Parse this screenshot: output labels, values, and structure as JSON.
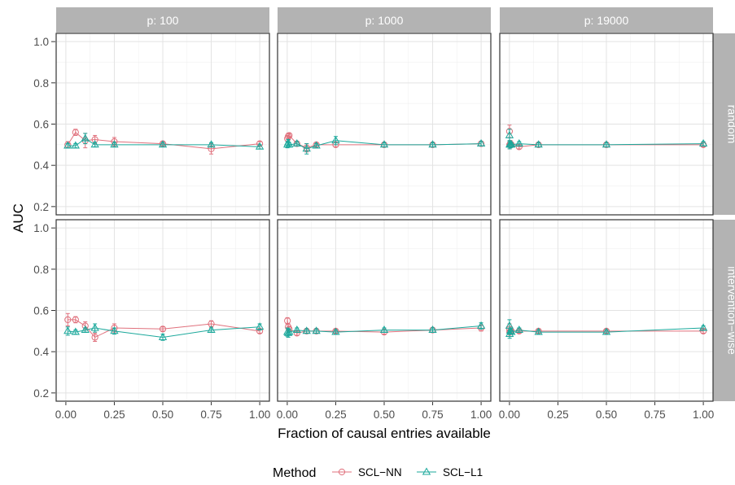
{
  "chart_data": {
    "type": "line",
    "xlabel": "Fraction of causal entries available",
    "ylabel": "AUC",
    "xlim": [
      -0.05,
      1.05
    ],
    "ylim": [
      0.16,
      1.04
    ],
    "x_ticks": [
      0,
      0.25,
      0.5,
      0.75,
      1
    ],
    "x_tick_labels": [
      "0.00",
      "0.25",
      "0.50",
      "0.75",
      "1.00"
    ],
    "y_ticks": [
      0.2,
      0.4,
      0.6,
      0.8,
      1.0
    ],
    "y_tick_labels": [
      "0.2",
      "0.4",
      "0.6",
      "0.8",
      "1.0"
    ],
    "grid": true,
    "columns": [
      "p: 100",
      "p: 1000",
      "p: 19000"
    ],
    "rows": [
      "random",
      "intervention−wise"
    ],
    "legend": {
      "title": "Method",
      "position": "bottom",
      "items": [
        {
          "name": "SCL−NN",
          "color": "#E0707C",
          "marker": "circle"
        },
        {
          "name": "SCL−L1",
          "color": "#1BA89B",
          "marker": "triangle"
        }
      ]
    },
    "panels": [
      {
        "column": "p: 100",
        "row": "random",
        "series": [
          {
            "name": "SCL−NN",
            "points": [
              {
                "x": 0.01,
                "y": 0.5,
                "err": 0.015
              },
              {
                "x": 0.05,
                "y": 0.56,
                "err": 0.015
              },
              {
                "x": 0.1,
                "y": 0.52,
                "err": 0.035
              },
              {
                "x": 0.15,
                "y": 0.525,
                "err": 0.02
              },
              {
                "x": 0.25,
                "y": 0.515,
                "err": 0.02
              },
              {
                "x": 0.5,
                "y": 0.505,
                "err": 0.01
              },
              {
                "x": 0.75,
                "y": 0.48,
                "err": 0.025
              },
              {
                "x": 1.0,
                "y": 0.505,
                "err": 0.01
              }
            ]
          },
          {
            "name": "SCL−L1",
            "points": [
              {
                "x": 0.01,
                "y": 0.495,
                "err": 0.01
              },
              {
                "x": 0.05,
                "y": 0.495,
                "err": 0.01
              },
              {
                "x": 0.1,
                "y": 0.53,
                "err": 0.025
              },
              {
                "x": 0.15,
                "y": 0.5,
                "err": 0.01
              },
              {
                "x": 0.25,
                "y": 0.5,
                "err": 0.01
              },
              {
                "x": 0.5,
                "y": 0.5,
                "err": 0.01
              },
              {
                "x": 0.75,
                "y": 0.5,
                "err": 0.01
              },
              {
                "x": 1.0,
                "y": 0.49,
                "err": 0.01
              }
            ]
          }
        ]
      },
      {
        "column": "p: 1000",
        "row": "random",
        "series": [
          {
            "name": "SCL−NN",
            "points": [
              {
                "x": 0.001,
                "y": 0.53,
                "err": 0.015
              },
              {
                "x": 0.005,
                "y": 0.54,
                "err": 0.015
              },
              {
                "x": 0.01,
                "y": 0.545,
                "err": 0.01
              },
              {
                "x": 0.05,
                "y": 0.505,
                "err": 0.01
              },
              {
                "x": 0.1,
                "y": 0.485,
                "err": 0.02
              },
              {
                "x": 0.15,
                "y": 0.5,
                "err": 0.01
              },
              {
                "x": 0.25,
                "y": 0.5,
                "err": 0.01
              },
              {
                "x": 0.5,
                "y": 0.5,
                "err": 0.01
              },
              {
                "x": 0.75,
                "y": 0.5,
                "err": 0.01
              },
              {
                "x": 1.0,
                "y": 0.505,
                "err": 0.01
              }
            ]
          },
          {
            "name": "SCL−L1",
            "points": [
              {
                "x": 0.001,
                "y": 0.5,
                "err": 0.015
              },
              {
                "x": 0.005,
                "y": 0.51,
                "err": 0.015
              },
              {
                "x": 0.01,
                "y": 0.5,
                "err": 0.01
              },
              {
                "x": 0.05,
                "y": 0.505,
                "err": 0.01
              },
              {
                "x": 0.1,
                "y": 0.48,
                "err": 0.025
              },
              {
                "x": 0.15,
                "y": 0.495,
                "err": 0.01
              },
              {
                "x": 0.25,
                "y": 0.52,
                "err": 0.02
              },
              {
                "x": 0.5,
                "y": 0.5,
                "err": 0.01
              },
              {
                "x": 0.75,
                "y": 0.5,
                "err": 0.01
              },
              {
                "x": 1.0,
                "y": 0.505,
                "err": 0.01
              }
            ]
          }
        ]
      },
      {
        "column": "p: 19000",
        "row": "random",
        "series": [
          {
            "name": "SCL−NN",
            "points": [
              {
                "x": 0.0001,
                "y": 0.565,
                "err": 0.03
              },
              {
                "x": 0.001,
                "y": 0.5,
                "err": 0.02
              },
              {
                "x": 0.005,
                "y": 0.505,
                "err": 0.015
              },
              {
                "x": 0.01,
                "y": 0.5,
                "err": 0.01
              },
              {
                "x": 0.05,
                "y": 0.49,
                "err": 0.01
              },
              {
                "x": 0.15,
                "y": 0.5,
                "err": 0.01
              },
              {
                "x": 0.5,
                "y": 0.5,
                "err": 0.01
              },
              {
                "x": 1.0,
                "y": 0.5,
                "err": 0.01
              }
            ]
          },
          {
            "name": "SCL−L1",
            "points": [
              {
                "x": 0.0001,
                "y": 0.545,
                "err": 0.03
              },
              {
                "x": 0.001,
                "y": 0.5,
                "err": 0.02
              },
              {
                "x": 0.005,
                "y": 0.5,
                "err": 0.015
              },
              {
                "x": 0.01,
                "y": 0.5,
                "err": 0.01
              },
              {
                "x": 0.05,
                "y": 0.505,
                "err": 0.01
              },
              {
                "x": 0.15,
                "y": 0.5,
                "err": 0.01
              },
              {
                "x": 0.5,
                "y": 0.5,
                "err": 0.01
              },
              {
                "x": 1.0,
                "y": 0.505,
                "err": 0.01
              }
            ]
          }
        ]
      },
      {
        "column": "p: 100",
        "row": "intervention−wise",
        "series": [
          {
            "name": "SCL−NN",
            "points": [
              {
                "x": 0.01,
                "y": 0.555,
                "err": 0.03
              },
              {
                "x": 0.05,
                "y": 0.555,
                "err": 0.015
              },
              {
                "x": 0.1,
                "y": 0.525,
                "err": 0.02
              },
              {
                "x": 0.15,
                "y": 0.47,
                "err": 0.02
              },
              {
                "x": 0.25,
                "y": 0.515,
                "err": 0.02
              },
              {
                "x": 0.5,
                "y": 0.51,
                "err": 0.01
              },
              {
                "x": 0.75,
                "y": 0.535,
                "err": 0.015
              },
              {
                "x": 1.0,
                "y": 0.5,
                "err": 0.01
              }
            ]
          },
          {
            "name": "SCL−L1",
            "points": [
              {
                "x": 0.01,
                "y": 0.5,
                "err": 0.02
              },
              {
                "x": 0.05,
                "y": 0.495,
                "err": 0.01
              },
              {
                "x": 0.1,
                "y": 0.505,
                "err": 0.01
              },
              {
                "x": 0.15,
                "y": 0.515,
                "err": 0.02
              },
              {
                "x": 0.25,
                "y": 0.5,
                "err": 0.015
              },
              {
                "x": 0.5,
                "y": 0.47,
                "err": 0.015
              },
              {
                "x": 0.75,
                "y": 0.505,
                "err": 0.01
              },
              {
                "x": 1.0,
                "y": 0.52,
                "err": 0.015
              }
            ]
          }
        ]
      },
      {
        "column": "p: 1000",
        "row": "intervention−wise",
        "series": [
          {
            "name": "SCL−NN",
            "points": [
              {
                "x": 0.001,
                "y": 0.55,
                "err": 0.015
              },
              {
                "x": 0.005,
                "y": 0.52,
                "err": 0.015
              },
              {
                "x": 0.01,
                "y": 0.51,
                "err": 0.01
              },
              {
                "x": 0.05,
                "y": 0.49,
                "err": 0.01
              },
              {
                "x": 0.1,
                "y": 0.5,
                "err": 0.01
              },
              {
                "x": 0.15,
                "y": 0.5,
                "err": 0.01
              },
              {
                "x": 0.25,
                "y": 0.5,
                "err": 0.01
              },
              {
                "x": 0.5,
                "y": 0.495,
                "err": 0.01
              },
              {
                "x": 0.75,
                "y": 0.505,
                "err": 0.01
              },
              {
                "x": 1.0,
                "y": 0.515,
                "err": 0.015
              }
            ]
          },
          {
            "name": "SCL−L1",
            "points": [
              {
                "x": 0.001,
                "y": 0.495,
                "err": 0.02
              },
              {
                "x": 0.005,
                "y": 0.49,
                "err": 0.02
              },
              {
                "x": 0.01,
                "y": 0.495,
                "err": 0.015
              },
              {
                "x": 0.05,
                "y": 0.505,
                "err": 0.01
              },
              {
                "x": 0.1,
                "y": 0.5,
                "err": 0.01
              },
              {
                "x": 0.15,
                "y": 0.5,
                "err": 0.01
              },
              {
                "x": 0.25,
                "y": 0.495,
                "err": 0.01
              },
              {
                "x": 0.5,
                "y": 0.505,
                "err": 0.01
              },
              {
                "x": 0.75,
                "y": 0.505,
                "err": 0.01
              },
              {
                "x": 1.0,
                "y": 0.525,
                "err": 0.015
              }
            ]
          }
        ]
      },
      {
        "column": "p: 19000",
        "row": "intervention−wise",
        "series": [
          {
            "name": "SCL−NN",
            "points": [
              {
                "x": 0.0001,
                "y": 0.51,
                "err": 0.025
              },
              {
                "x": 0.001,
                "y": 0.495,
                "err": 0.02
              },
              {
                "x": 0.005,
                "y": 0.5,
                "err": 0.015
              },
              {
                "x": 0.01,
                "y": 0.5,
                "err": 0.01
              },
              {
                "x": 0.05,
                "y": 0.5,
                "err": 0.01
              },
              {
                "x": 0.15,
                "y": 0.5,
                "err": 0.01
              },
              {
                "x": 0.5,
                "y": 0.5,
                "err": 0.01
              },
              {
                "x": 1.0,
                "y": 0.5,
                "err": 0.01
              }
            ]
          },
          {
            "name": "SCL−L1",
            "points": [
              {
                "x": 0.0001,
                "y": 0.525,
                "err": 0.03
              },
              {
                "x": 0.001,
                "y": 0.485,
                "err": 0.02
              },
              {
                "x": 0.005,
                "y": 0.5,
                "err": 0.015
              },
              {
                "x": 0.01,
                "y": 0.495,
                "err": 0.01
              },
              {
                "x": 0.05,
                "y": 0.505,
                "err": 0.01
              },
              {
                "x": 0.15,
                "y": 0.495,
                "err": 0.01
              },
              {
                "x": 0.5,
                "y": 0.495,
                "err": 0.01
              },
              {
                "x": 1.0,
                "y": 0.515,
                "err": 0.01
              }
            ]
          }
        ]
      }
    ]
  }
}
